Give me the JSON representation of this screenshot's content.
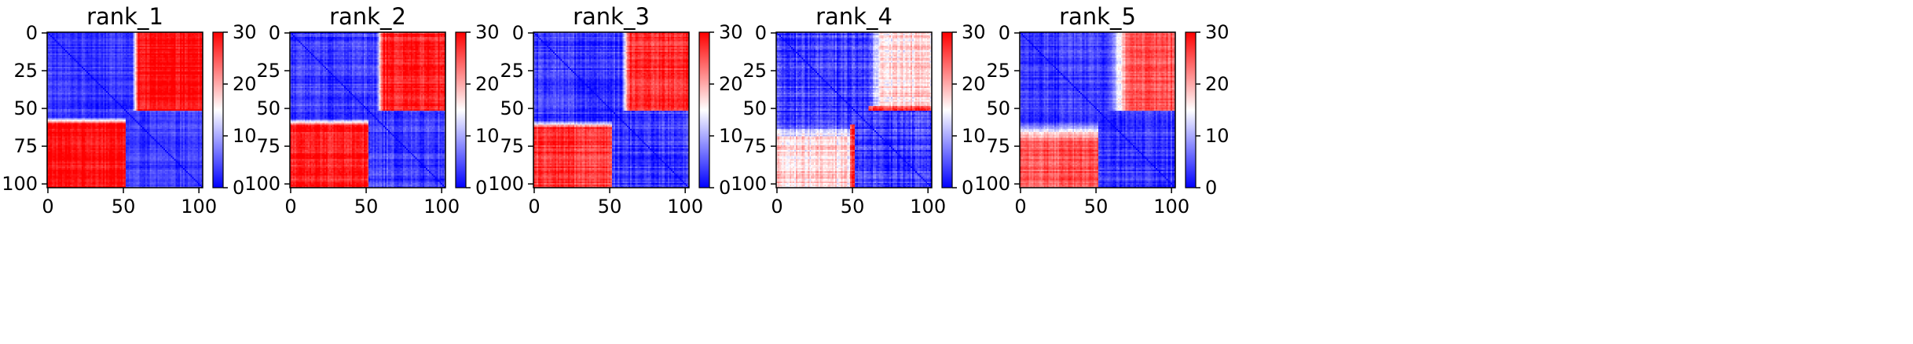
{
  "chart_data": [
    {
      "type": "heatmap",
      "title": "rank_1",
      "matrix_size": 103,
      "block_split": 52,
      "x_ticks": [
        0,
        50,
        100
      ],
      "y_ticks": [
        0,
        25,
        50,
        75,
        100
      ],
      "colorbar": {
        "min": 0,
        "max": 30,
        "ticks": [
          0,
          10,
          20,
          30
        ],
        "colormap": "bwr"
      },
      "pattern": {
        "within_block_value": 3,
        "between_block_value": 29,
        "boundary_offset": 4,
        "boundary_width": 4,
        "noise": 1.5
      }
    },
    {
      "type": "heatmap",
      "title": "rank_2",
      "matrix_size": 103,
      "block_split": 52,
      "x_ticks": [
        0,
        50,
        100
      ],
      "y_ticks": [
        0,
        25,
        50,
        75,
        100
      ],
      "colorbar": {
        "min": 0,
        "max": 30,
        "ticks": [
          0,
          10,
          20,
          30
        ],
        "colormap": "bwr"
      },
      "pattern": {
        "within_block_value": 3,
        "between_block_value": 28,
        "boundary_offset": 5,
        "boundary_width": 4,
        "noise": 2
      }
    },
    {
      "type": "heatmap",
      "title": "rank_3",
      "matrix_size": 103,
      "block_split": 52,
      "x_ticks": [
        0,
        50,
        100
      ],
      "y_ticks": [
        0,
        25,
        50,
        75,
        100
      ],
      "colorbar": {
        "min": 0,
        "max": 30,
        "ticks": [
          0,
          10,
          20,
          30
        ],
        "colormap": "bwr"
      },
      "pattern": {
        "within_block_value": 3,
        "between_block_value": 27,
        "boundary_offset": 6,
        "boundary_width": 5,
        "noise": 2
      }
    },
    {
      "type": "heatmap",
      "title": "rank_4",
      "matrix_size": 103,
      "block_split": 52,
      "x_ticks": [
        0,
        50,
        100
      ],
      "y_ticks": [
        0,
        25,
        50,
        75,
        100
      ],
      "colorbar": {
        "min": 0,
        "max": 30,
        "ticks": [
          0,
          10,
          20,
          30
        ],
        "colormap": "bwr"
      },
      "pattern": {
        "within_block_value": 3,
        "between_block_value": 17,
        "boundary_offset": 8,
        "boundary_width": 10,
        "noise": 2.5,
        "edge_stripe_value": 26
      }
    },
    {
      "type": "heatmap",
      "title": "rank_5",
      "matrix_size": 103,
      "block_split": 52,
      "x_ticks": [
        0,
        50,
        100
      ],
      "y_ticks": [
        0,
        25,
        50,
        75,
        100
      ],
      "colorbar": {
        "min": 0,
        "max": 30,
        "ticks": [
          0,
          10,
          20,
          30
        ],
        "colormap": "bwr"
      },
      "pattern": {
        "within_block_value": 3,
        "between_block_value": 25,
        "boundary_offset": 6,
        "boundary_width": 14,
        "noise": 2
      }
    }
  ]
}
